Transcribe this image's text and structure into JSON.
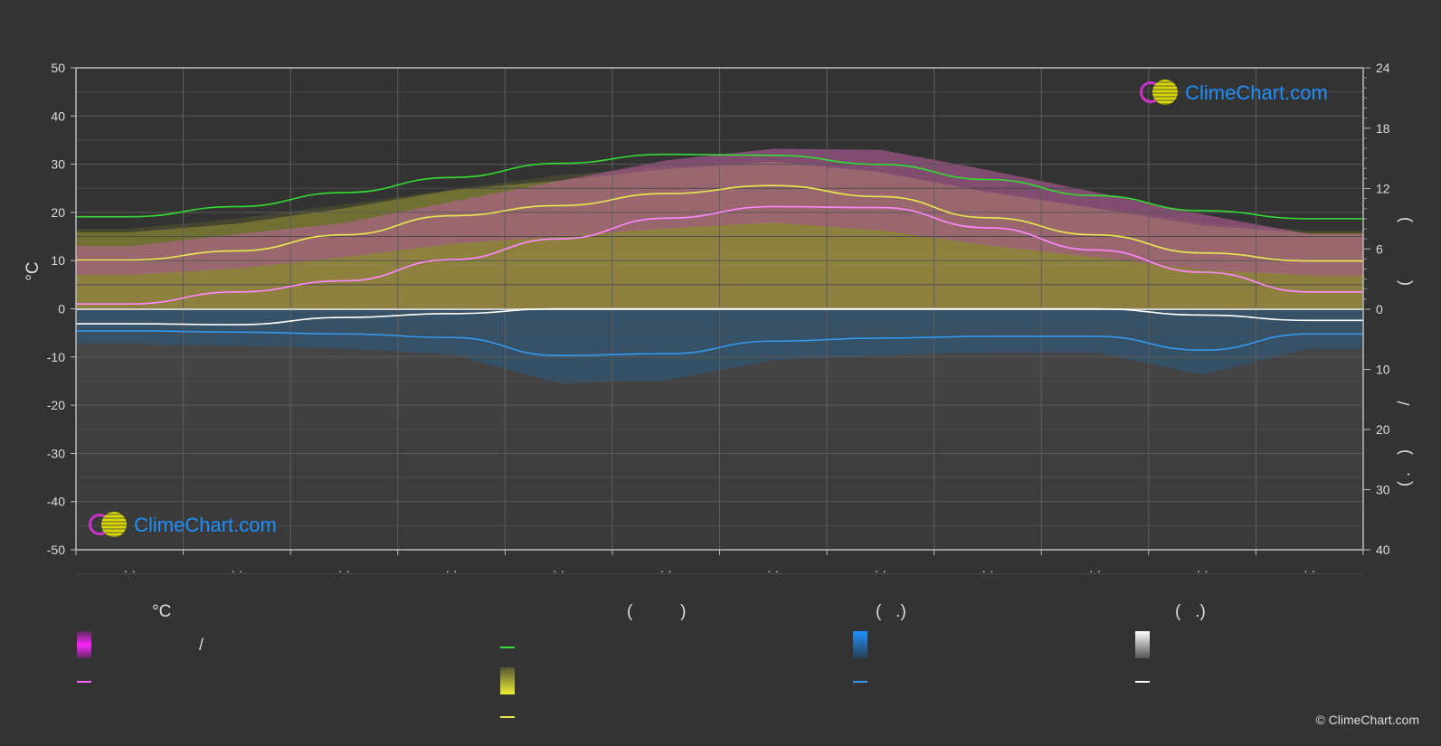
{
  "chart_data": {
    "type": "area",
    "left_axis": {
      "label": "°C",
      "ticks": [
        50,
        40,
        30,
        20,
        10,
        0,
        -10,
        -20,
        -30,
        -40,
        -50
      ],
      "range": [
        -50,
        50
      ]
    },
    "right_axis_top": {
      "ticks": [
        24,
        18,
        12,
        6,
        0
      ],
      "range": [
        0,
        24
      ],
      "label_fragments": [
        ")",
        "("
      ]
    },
    "right_axis_bottom": {
      "ticks": [
        0,
        10,
        20,
        30,
        40
      ],
      "range": [
        0,
        40
      ],
      "label_fragments": [
        "/",
        ")",
        "( ."
      ]
    },
    "x": {
      "months": 12,
      "tick_labels": [
        "· ·",
        "· ·",
        "· ·",
        "· ·",
        "· ·",
        "· ·",
        "· ·",
        "· ·",
        "· ·",
        "· ·",
        "· ·",
        "· ·"
      ]
    },
    "series": [
      {
        "key": "daylight",
        "color": "#33dd33",
        "values": [
          9.2,
          10.2,
          11.6,
          13.1,
          14.5,
          15.4,
          15.3,
          14.4,
          12.9,
          11.3,
          9.8,
          9.0
        ]
      },
      {
        "key": "sunshine",
        "color": "#e8e850",
        "values": [
          4.9,
          5.8,
          7.4,
          9.3,
          10.3,
          11.5,
          12.3,
          11.2,
          9.1,
          7.4,
          5.6,
          4.8
        ]
      },
      {
        "key": "max_temp",
        "color": "#ff88ff",
        "values": [
          1,
          3.5,
          5.8,
          10.2,
          14.5,
          18.8,
          21.2,
          21,
          16.8,
          12.2,
          7.6,
          3.5
        ]
      },
      {
        "key": "min_temp",
        "color": "#ffffff",
        "values": [
          -3.1,
          -3.3,
          -1.8,
          -1.0,
          0,
          0,
          0,
          0,
          0,
          0,
          -1.3,
          -2.4
        ]
      },
      {
        "key": "rain",
        "color": "#3399ee",
        "values": [
          3.6,
          3.8,
          4.1,
          4.7,
          7.7,
          7.4,
          5.3,
          4.8,
          4.5,
          4.5,
          6.8,
          4.1
        ]
      }
    ],
    "logos": [
      "ClimeChart.com",
      "ClimeChart.com"
    ],
    "copyright": "© ClimeChart.com"
  },
  "legend": {
    "groups": [
      {
        "header": "°C",
        "items": [
          {
            "text": "/",
            "swatch": "magenta-band"
          },
          {
            "text": "",
            "swatch": "magenta-line"
          }
        ]
      },
      {
        "header": "(          )",
        "items": [
          {
            "text": "",
            "swatch": "green-line"
          },
          {
            "text": "",
            "swatch": "yellow-band"
          },
          {
            "text": "",
            "swatch": "yellow-line"
          }
        ]
      },
      {
        "header": "(   .)",
        "items": [
          {
            "text": "",
            "swatch": "blue-band"
          },
          {
            "text": "",
            "swatch": "blue-line"
          }
        ]
      },
      {
        "header": "(   .)",
        "items": [
          {
            "text": "",
            "swatch": "white-band"
          },
          {
            "text": "",
            "swatch": "white-line"
          }
        ]
      }
    ]
  }
}
